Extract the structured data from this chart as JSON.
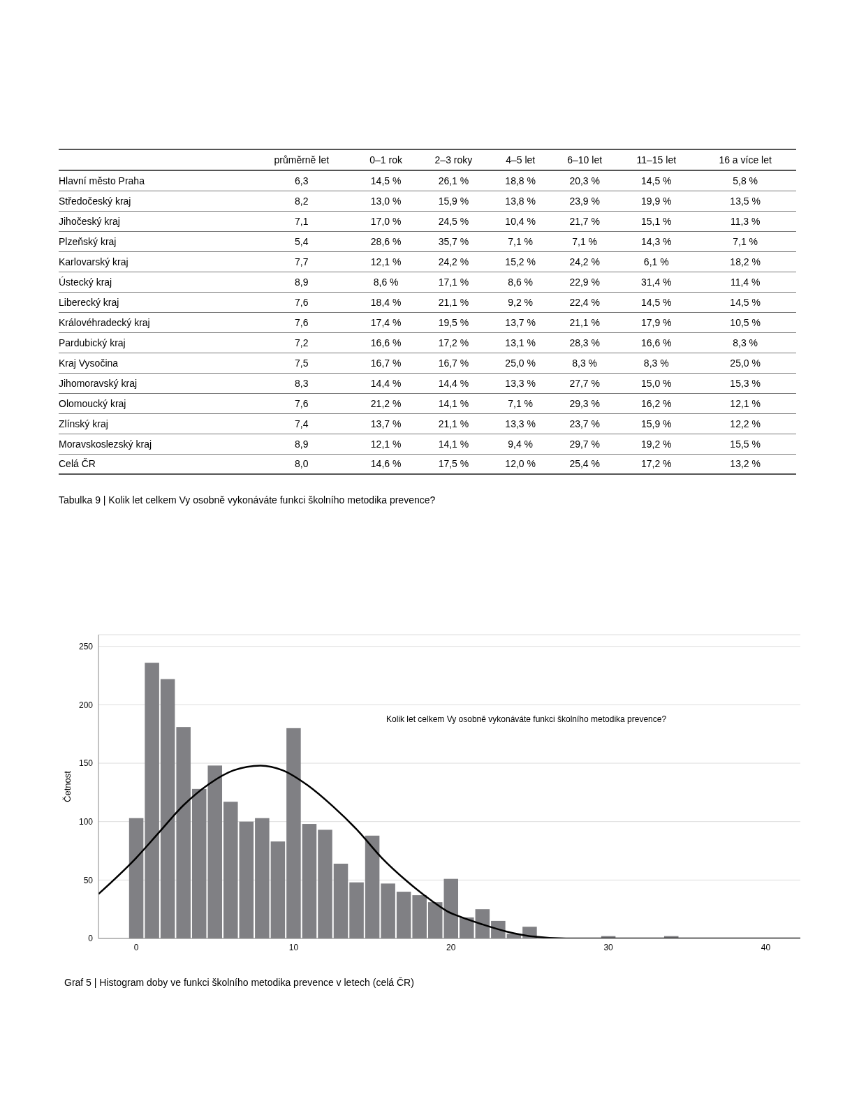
{
  "chart_data": [
    {
      "type": "other",
      "categories": [
        "průměrně let",
        "0–1 rok",
        "2–3 roky",
        "4–5 let",
        "6–10 let",
        "11–15 let",
        "16 a více let"
      ],
      "y_categories": [
        "Hlavní město Praha",
        "Středočeský kraj",
        "Jihočeský kraj",
        "Plzeňský kraj",
        "Karlovarský kraj",
        "Ústecký kraj",
        "Liberecký kraj",
        "Královéhradecký kraj",
        "Pardubický kraj",
        "Kraj Vysočina",
        "Jihomoravský kraj",
        "Olomoucký kraj",
        "Zlínský kraj",
        "Moravskoslezský kraj",
        "Celá ČR"
      ],
      "cell_labels": [
        [
          "6,3",
          "14,5 %",
          "26,1 %",
          "18,8 %",
          "20,3 %",
          "14,5 %",
          "5,8 %"
        ],
        [
          "8,2",
          "13,0 %",
          "15,9 %",
          "13,8 %",
          "23,9 %",
          "19,9 %",
          "13,5 %"
        ],
        [
          "7,1",
          "17,0 %",
          "24,5 %",
          "10,4 %",
          "21,7 %",
          "15,1 %",
          "11,3 %"
        ],
        [
          "5,4",
          "28,6 %",
          "35,7 %",
          "7,1 %",
          "7,1 %",
          "14,3 %",
          "7,1 %"
        ],
        [
          "7,7",
          "12,1 %",
          "24,2 %",
          "15,2 %",
          "24,2 %",
          "6,1 %",
          "18,2 %"
        ],
        [
          "8,9",
          "8,6 %",
          "17,1 %",
          "8,6 %",
          "22,9 %",
          "31,4 %",
          "11,4 %"
        ],
        [
          "7,6",
          "18,4 %",
          "21,1 %",
          "9,2 %",
          "22,4 %",
          "14,5 %",
          "14,5 %"
        ],
        [
          "7,6",
          "17,4 %",
          "19,5 %",
          "13,7 %",
          "21,1 %",
          "17,9 %",
          "10,5 %"
        ],
        [
          "7,2",
          "16,6 %",
          "17,2 %",
          "13,1 %",
          "28,3 %",
          "16,6 %",
          "8,3 %"
        ],
        [
          "7,5",
          "16,7 %",
          "16,7 %",
          "25,0 %",
          "8,3 %",
          "8,3 %",
          "25,0 %"
        ],
        [
          "8,3",
          "14,4 %",
          "14,4 %",
          "13,3 %",
          "27,7 %",
          "15,0 %",
          "15,3 %"
        ],
        [
          "7,6",
          "21,2 %",
          "14,1 %",
          "7,1 %",
          "29,3 %",
          "16,2 %",
          "12,1 %"
        ],
        [
          "7,4",
          "13,7 %",
          "21,1 %",
          "13,3 %",
          "23,7 %",
          "15,9 %",
          "12,2 %"
        ],
        [
          "8,9",
          "12,1 %",
          "14,1 %",
          "9,4 %",
          "29,7 %",
          "19,2 %",
          "15,5 %"
        ],
        [
          "8,0",
          "14,6 %",
          "17,5 %",
          "12,0 %",
          "25,4 %",
          "17,2 %",
          "13,2 %"
        ]
      ],
      "annotations": [
        "Tabulka 9 | Kolik let celkem Vy osobně vykonáváte funkci školního metodika prevence?"
      ]
    },
    {
      "type": "histogram",
      "title": "Kolik let celkem Vy osobně vykonáváte funkci školního metodika prevence?",
      "ylabel": "Četnost",
      "bins": [
        -0.5,
        0.5,
        1.5,
        2.5,
        3.5,
        4.5,
        5.5,
        6.5,
        7.5,
        8.5,
        9.5,
        10.5,
        11.5,
        12.5,
        13.5,
        14.5,
        15.5,
        16.5,
        17.5,
        18.5,
        19.5,
        20.5,
        21.5,
        22.5,
        23.5,
        24.5,
        25.5,
        26.5,
        27.5,
        28.5,
        29.5,
        30.5,
        31.5,
        32.5,
        33.5,
        34.5
      ],
      "values": [
        103,
        236,
        222,
        181,
        128,
        148,
        117,
        100,
        103,
        83,
        180,
        98,
        93,
        64,
        48,
        88,
        47,
        40,
        37,
        31,
        51,
        18,
        25,
        15,
        4,
        10,
        0,
        0,
        0,
        0,
        2,
        0,
        0,
        0,
        2
      ],
      "color": "#808084",
      "series": [
        {
          "type": "line",
          "color": "#000000",
          "marker": "none",
          "x": [
            -2.4,
            0,
            1.4,
            3.0,
            4.6,
            6.2,
            7.9,
            9.3,
            10.9,
            12.5,
            14.1,
            15.6,
            17.2,
            18.8,
            19.8,
            20.5,
            22,
            23.5,
            25,
            27.3,
            42.2
          ],
          "values": [
            38,
            69,
            90,
            114,
            132,
            144,
            148,
            144,
            131,
            113,
            92,
            69,
            49,
            32,
            23,
            19,
            12,
            6,
            2,
            0,
            0
          ]
        }
      ],
      "xlim": [
        -2.4,
        42.2
      ],
      "xticks": [
        0,
        10,
        20,
        30,
        40
      ],
      "ylim": [
        0,
        260
      ],
      "yticks": [
        0,
        50,
        100,
        150,
        200,
        250
      ],
      "grid": "y",
      "annotations": [
        "Graf 5 | Histogram doby ve funkci školního metodika prevence v letech (celá ČR)"
      ]
    }
  ]
}
